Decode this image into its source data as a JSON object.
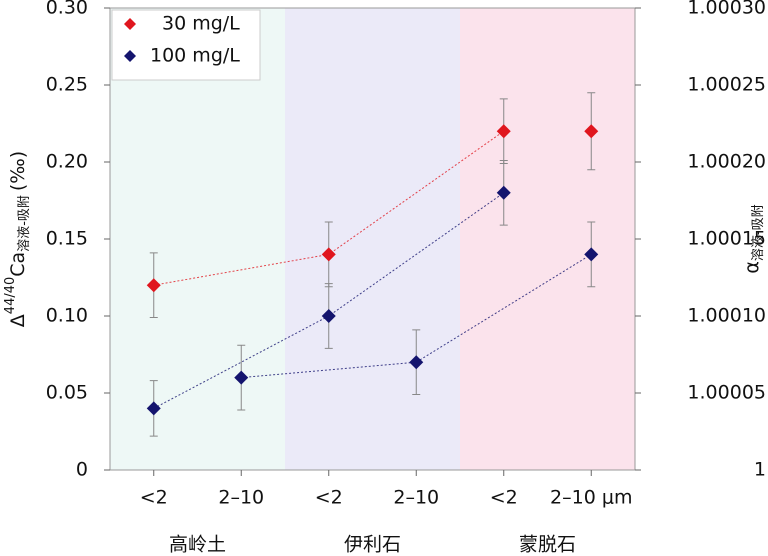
{
  "chart_data": {
    "type": "scatter",
    "categories": [
      "<2",
      "2–10",
      "<2",
      "2–10",
      "<2",
      "2–10 μm"
    ],
    "groups": [
      "高岭土",
      "伊利石",
      "蒙脱石"
    ],
    "group_colors": [
      "#eef8f6",
      "#ebeaf8",
      "#fbe3ec"
    ],
    "series": [
      {
        "name": "30 mg/L",
        "color": "#e0161e",
        "values": [
          0.12,
          null,
          0.14,
          null,
          0.22,
          0.22
        ],
        "errors": [
          0.021,
          null,
          0.021,
          null,
          0.021,
          0.025
        ]
      },
      {
        "name": "100 mg/L",
        "color": "#14146e",
        "values": [
          0.04,
          0.06,
          0.1,
          0.07,
          0.18,
          0.14
        ],
        "errors": [
          0.018,
          0.021,
          0.021,
          0.021,
          0.021,
          0.021
        ]
      }
    ],
    "ylim": [
      0,
      0.3
    ],
    "yticks": [
      0,
      0.05,
      {
        "value": 0.1,
        "label": "0.10"
      },
      0.15,
      {
        "value": 0.2,
        "label": "0.20"
      },
      0.25,
      {
        "value": 0.3,
        "label": "0.30"
      }
    ],
    "y2lim": [
      1,
      1.0003
    ],
    "y2ticks": [
      1,
      1.00005,
      {
        "value": 1.0001,
        "label": "1.00010"
      },
      1.00015,
      {
        "value": 1.0002,
        "label": "1.00020"
      },
      1.00025,
      {
        "value": 1.0003,
        "label": "1.00030"
      }
    ],
    "ylabel": {
      "symbol": "Δ",
      "superscript": "44/40",
      "element": "Ca",
      "subscript": "溶液-吸附",
      "unit": "(‰)"
    },
    "y2label": {
      "symbol": "α",
      "subscript": "溶液-吸附"
    },
    "legend": "upper left"
  }
}
